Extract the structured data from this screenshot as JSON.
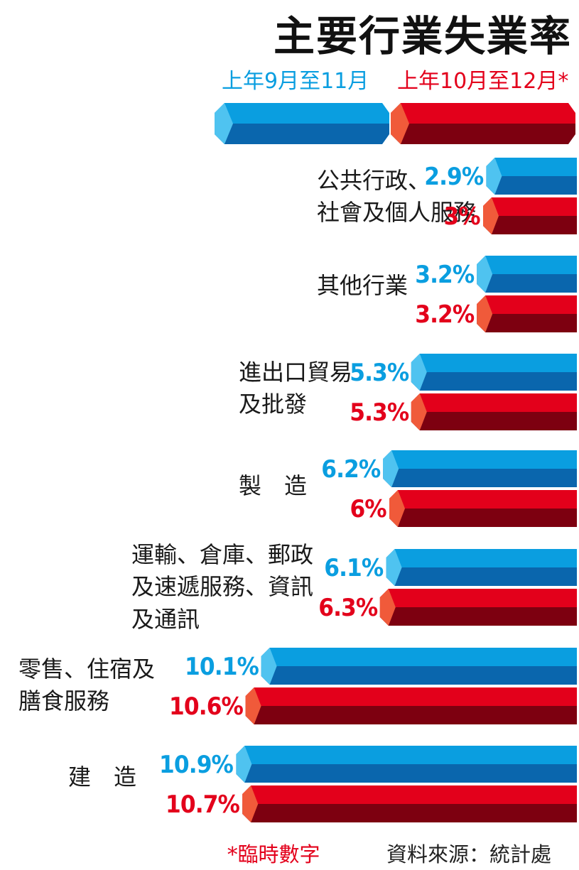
{
  "title": "主要行業失業率",
  "footnote": "*臨時數字",
  "source": "資料來源：統計處",
  "colors": {
    "series1_light": "#4fc3f0",
    "series1_top": "#0a9ee0",
    "series1_bottom": "#0a66ad",
    "series2_light": "#f05a3a",
    "series2_top": "#e3001b",
    "series2_bottom": "#7d0010",
    "value_blue": "#0a9ee0",
    "value_red": "#e3001b"
  },
  "chart_data": {
    "type": "bar",
    "orientation": "horizontal",
    "title": "主要行業失業率",
    "categories": [
      "公共行政、\n社會及個人服務",
      "其他行業",
      "進出口貿易\n及批發",
      "製　造",
      "運輸、倉庫、郵政\n及速遞服務、資訊\n及通訊",
      "零售、住宿及\n膳食服務",
      "建　造"
    ],
    "series": [
      {
        "name": "上年9月至11月",
        "values": [
          2.9,
          3.2,
          5.3,
          6.2,
          6.1,
          10.1,
          10.9
        ],
        "labels": [
          "2.9%",
          "3.2%",
          "5.3%",
          "6.2%",
          "6.1%",
          "10.1%",
          "10.9%"
        ]
      },
      {
        "name": "上年10月至12月*",
        "values": [
          3.0,
          3.2,
          5.3,
          6.0,
          6.3,
          10.6,
          10.7
        ],
        "labels": [
          "3%",
          "3.2%",
          "5.3%",
          "6%",
          "6.3%",
          "10.6%",
          "10.7%"
        ]
      }
    ],
    "unit": "%",
    "legend": "top",
    "grid": false
  }
}
